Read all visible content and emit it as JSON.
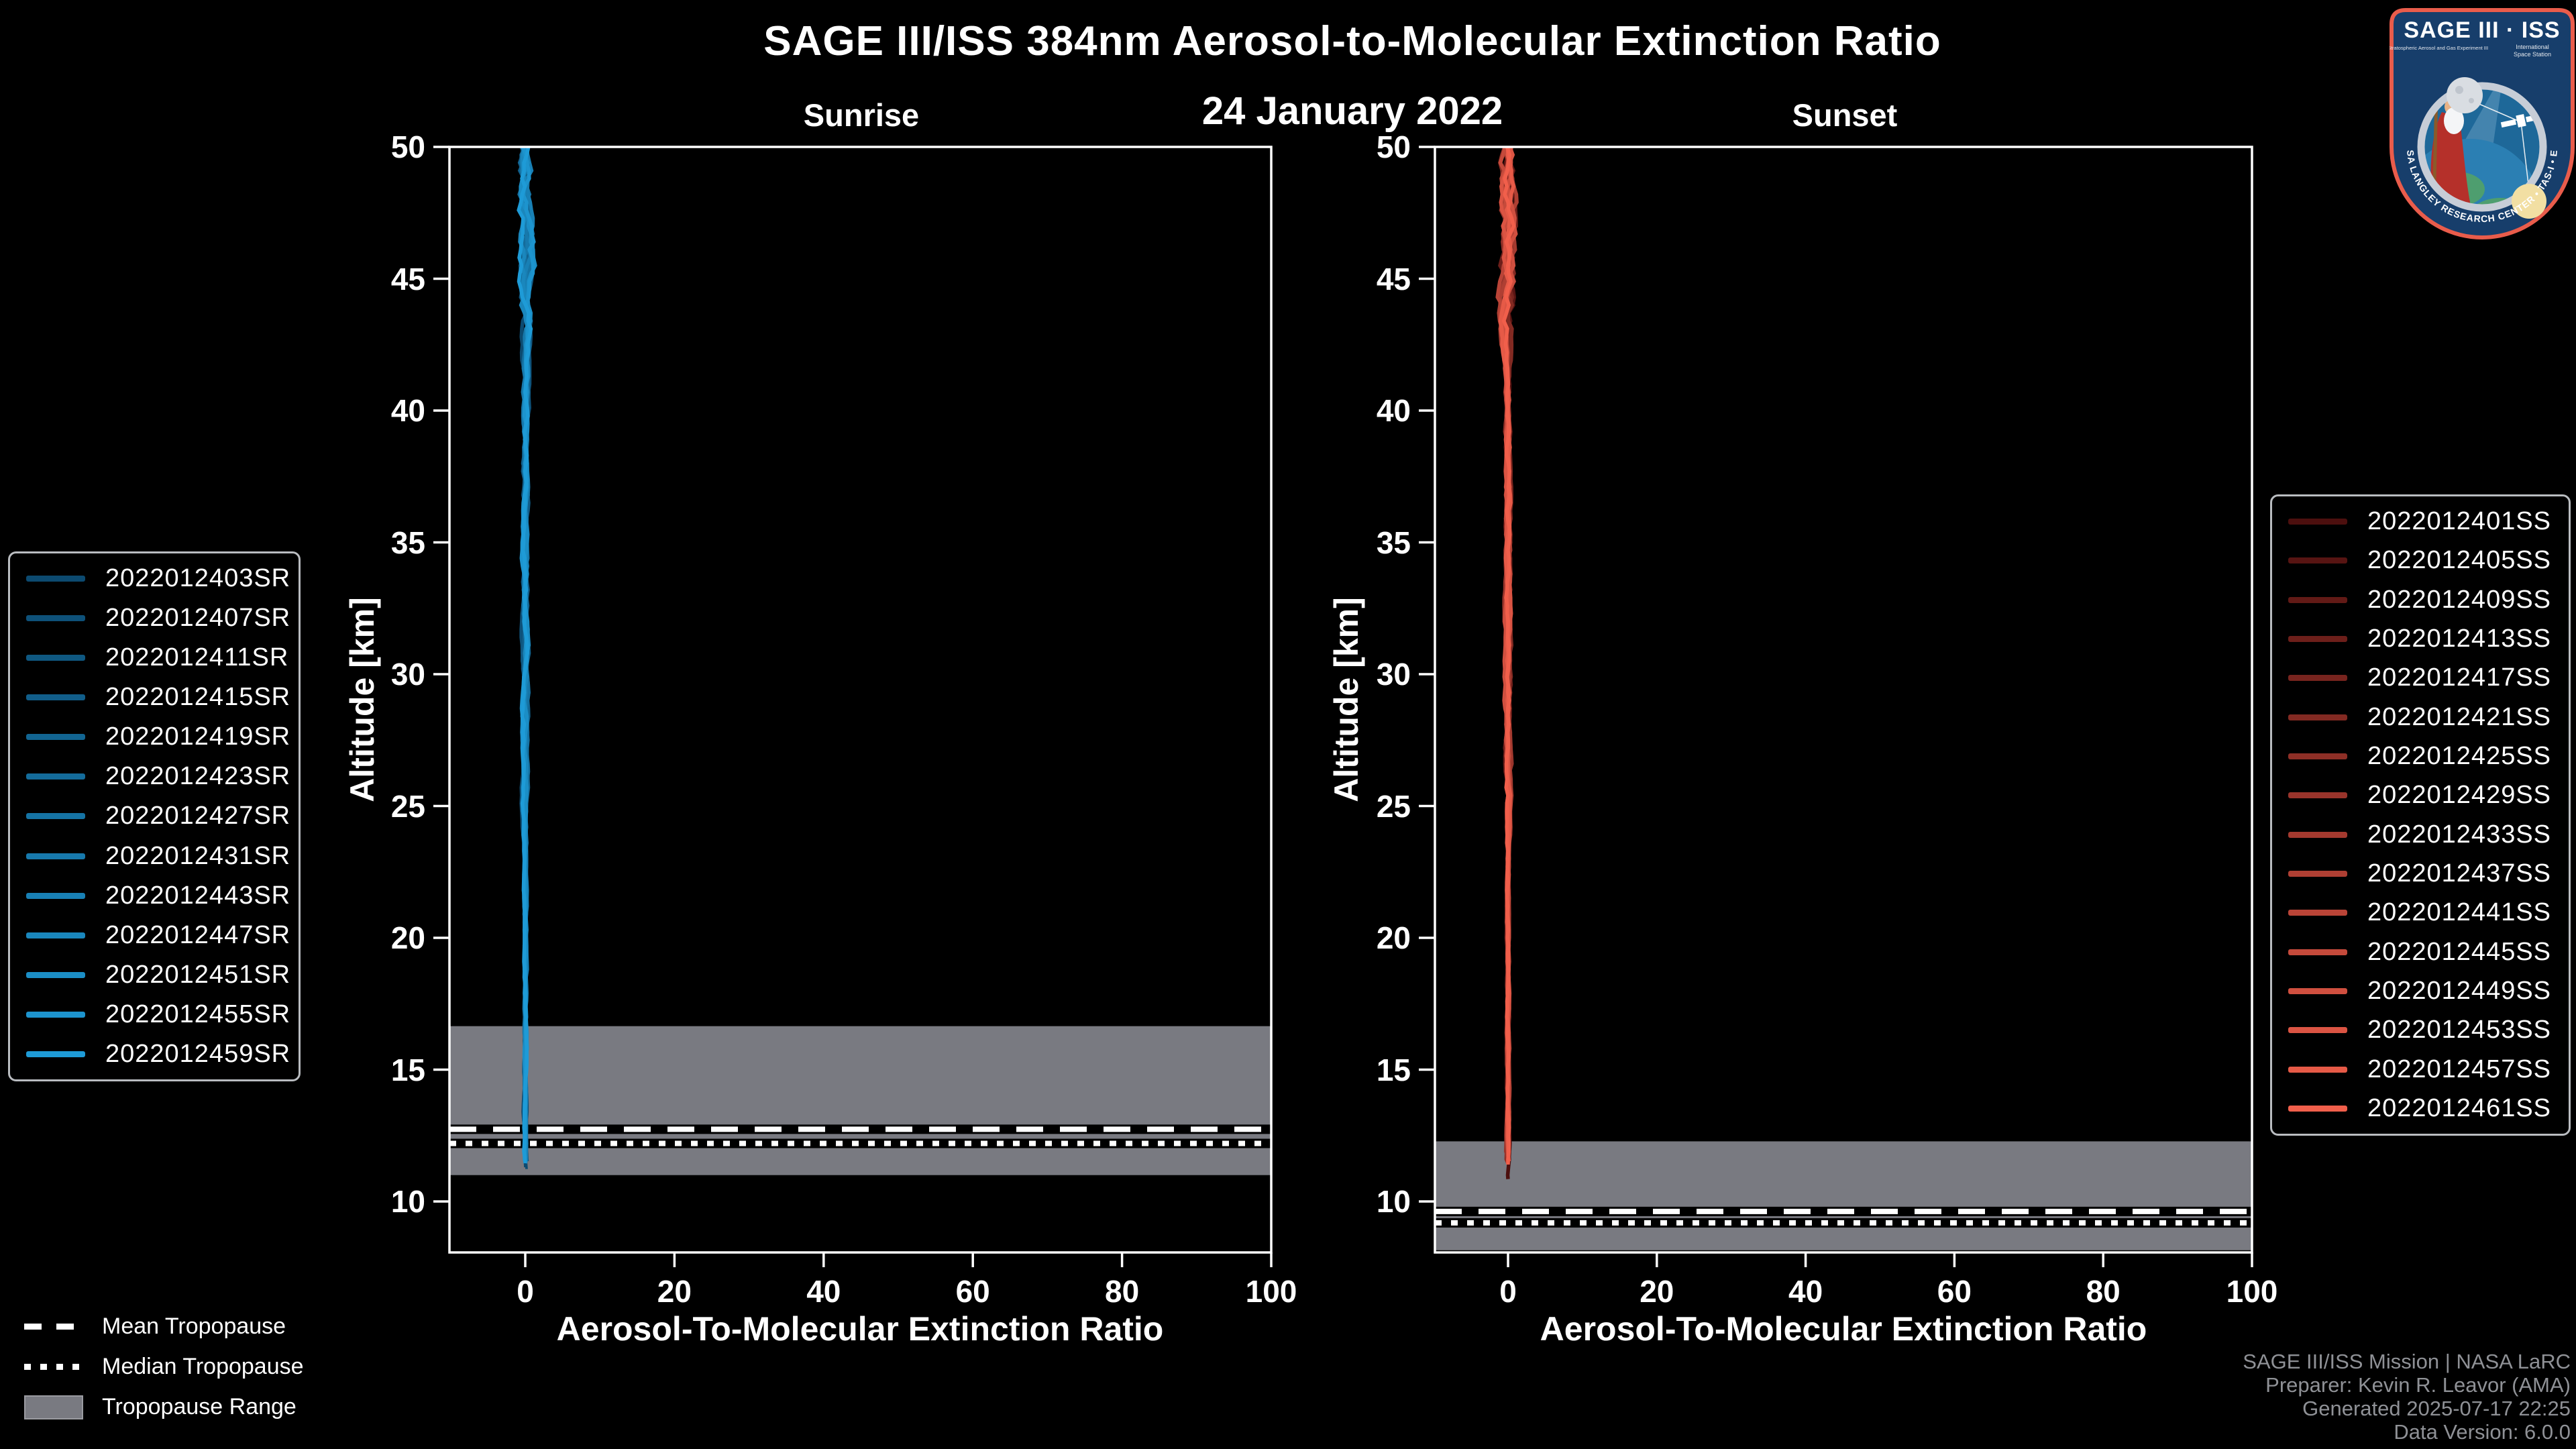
{
  "header": {
    "title": "SAGE III/ISS 384nm Aerosol-to-Molecular Extinction Ratio",
    "date": "24 January 2022"
  },
  "colors": {
    "background": "#000000",
    "axis": "#ffffff",
    "tropopause_band": "#797a81",
    "legend_border": "#b9bcc0",
    "attribution_text": "#8f9196",
    "sunrise_line_main": "#1b87c7",
    "sunset_line_main": "#e8564a"
  },
  "tropopause_legend": {
    "mean": "Mean Tropopause",
    "median": "Median Tropopause",
    "range": "Tropopause Range"
  },
  "attribution": {
    "line1": "SAGE III/ISS Mission | NASA LaRC",
    "line2": "Preparer: Kevin R. Leavor (AMA)",
    "line3": "Generated 2025-07-17 22:25",
    "line4": "Data Version: 6.0.0"
  },
  "logo": {
    "title": "SAGE III · ISS",
    "subtitle_left": "Stratospheric Aerosol and Gas Experiment III",
    "subtitle_right1": "International",
    "subtitle_right2": "Space Station",
    "arc_text": "NASA LANGLEY RESEARCH CENTER • TAS-I • ESA"
  },
  "chart_data": {
    "type": "line",
    "title": "SAGE III/ISS 384nm Aerosol-to-Molecular Extinction Ratio",
    "subtitle": "24 January 2022",
    "xlabel": "Aerosol-To-Molecular Extinction Ratio",
    "ylabel": "Altitude [km]",
    "xlim": [
      -10.2,
      100
    ],
    "ylim": [
      8.07,
      50
    ],
    "xticks": [
      0,
      20,
      40,
      60,
      80,
      100
    ],
    "yticks": [
      10,
      15,
      20,
      25,
      30,
      35,
      40,
      45,
      50
    ],
    "grid": false,
    "note": "All extinction-ratio profiles cluster near 0 over the full altitude range; profiles are near-vertical lines at ratio ~0 with small wiggles (~±0.5) above ~44 km.",
    "panels": [
      {
        "id": "sunrise",
        "title": "Sunrise",
        "legend_position": "outside-left",
        "tropopause": {
          "range": [
            11.0,
            16.65
          ],
          "mean": 12.74,
          "median": 12.2
        },
        "series": [
          {
            "name": "2022012403SR",
            "color": "#0C4A70",
            "ratio": 0,
            "top_altitude": 50,
            "min_altitude": 11.3
          },
          {
            "name": "2022012407SR",
            "color": "#0E5179",
            "ratio": 0,
            "top_altitude": 50,
            "min_altitude": 11.6
          },
          {
            "name": "2022012411SR",
            "color": "#0F5881",
            "ratio": 0,
            "top_altitude": 50,
            "min_altitude": 11.5
          },
          {
            "name": "2022012415SR",
            "color": "#115E8A",
            "ratio": 0,
            "top_altitude": 50,
            "min_altitude": 11.55
          },
          {
            "name": "2022012419SR",
            "color": "#126592",
            "ratio": 0,
            "top_altitude": 50,
            "min_altitude": 11.45
          },
          {
            "name": "2022012423SR",
            "color": "#146C9B",
            "ratio": 0,
            "top_altitude": 50,
            "min_altitude": 11.7
          },
          {
            "name": "2022012427SR",
            "color": "#1573A4",
            "ratio": 0,
            "top_altitude": 50,
            "min_altitude": 11.5
          },
          {
            "name": "2022012431SR",
            "color": "#1779AC",
            "ratio": 0,
            "top_altitude": 50,
            "min_altitude": 11.6
          },
          {
            "name": "2022012443SR",
            "color": "#1880B5",
            "ratio": 0,
            "top_altitude": 50,
            "min_altitude": 11.45
          },
          {
            "name": "2022012447SR",
            "color": "#1A87BD",
            "ratio": 0,
            "top_altitude": 50,
            "min_altitude": 11.55
          },
          {
            "name": "2022012451SR",
            "color": "#1B8EC6",
            "ratio": 0,
            "top_altitude": 50,
            "min_altitude": 11.65
          },
          {
            "name": "2022012455SR",
            "color": "#1D94CE",
            "ratio": 0,
            "top_altitude": 50,
            "min_altitude": 11.5
          },
          {
            "name": "2022012459SR",
            "color": "#1E9BD7",
            "ratio": 0,
            "top_altitude": 50,
            "min_altitude": 11.45
          }
        ]
      },
      {
        "id": "sunset",
        "title": "Sunset",
        "legend_position": "outside-right",
        "tropopause": {
          "range": [
            8.15,
            12.28
          ],
          "mean": 9.62,
          "median": 9.19
        },
        "series": [
          {
            "name": "2022012401SS",
            "color": "#4C0F0E",
            "ratio": 0,
            "top_altitude": 50,
            "min_altitude": 10.85
          },
          {
            "name": "2022012405SS",
            "color": "#571412",
            "ratio": 0,
            "top_altitude": 50,
            "min_altitude": 11.6
          },
          {
            "name": "2022012409SS",
            "color": "#621A16",
            "ratio": 0,
            "top_altitude": 50,
            "min_altitude": 11.5
          },
          {
            "name": "2022012413SS",
            "color": "#6D1F1A",
            "ratio": 0,
            "top_altitude": 50,
            "min_altitude": 11.7
          },
          {
            "name": "2022012417SS",
            "color": "#78241E",
            "ratio": 0,
            "top_altitude": 50,
            "min_altitude": 11.55
          },
          {
            "name": "2022012421SS",
            "color": "#832A22",
            "ratio": 0,
            "top_altitude": 50,
            "min_altitude": 11.6
          },
          {
            "name": "2022012425SS",
            "color": "#8E2F26",
            "ratio": 0,
            "top_altitude": 50,
            "min_altitude": 11.45
          },
          {
            "name": "2022012429SS",
            "color": "#99342B",
            "ratio": 0,
            "top_altitude": 50,
            "min_altitude": 11.65
          },
          {
            "name": "2022012433SS",
            "color": "#A43A2F",
            "ratio": 0,
            "top_altitude": 50,
            "min_altitude": 11.5
          },
          {
            "name": "2022012437SS",
            "color": "#AF3F33",
            "ratio": 0,
            "top_altitude": 50,
            "min_altitude": 11.6
          },
          {
            "name": "2022012441SS",
            "color": "#BA4437",
            "ratio": 0,
            "top_altitude": 50,
            "min_altitude": 11.55
          },
          {
            "name": "2022012445SS",
            "color": "#C54A3B",
            "ratio": 0,
            "top_altitude": 50,
            "min_altitude": 11.7
          },
          {
            "name": "2022012449SS",
            "color": "#D04F3F",
            "ratio": 0,
            "top_altitude": 50,
            "min_altitude": 11.5
          },
          {
            "name": "2022012453SS",
            "color": "#DB5443",
            "ratio": 0,
            "top_altitude": 50,
            "min_altitude": 11.6
          },
          {
            "name": "2022012457SS",
            "color": "#E65A47",
            "ratio": 0,
            "top_altitude": 50,
            "min_altitude": 11.45
          },
          {
            "name": "2022012461SS",
            "color": "#F15F4B",
            "ratio": 0,
            "top_altitude": 50,
            "min_altitude": 11.4
          }
        ]
      }
    ]
  }
}
